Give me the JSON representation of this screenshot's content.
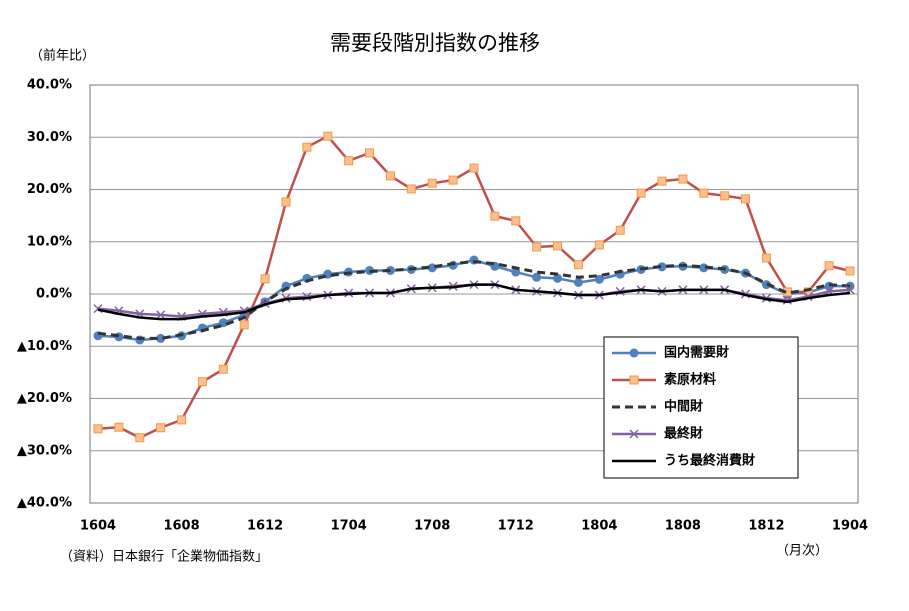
{
  "chart_data": {
    "type": "line",
    "title": "需要段階別指数の推移",
    "y_label": "（前年比）",
    "x_label": "（月次）",
    "source": "（資料）日本銀行「企業物価指数」",
    "categories": [
      "1604",
      null,
      null,
      null,
      "1608",
      null,
      null,
      null,
      "1612",
      null,
      null,
      null,
      "1704",
      null,
      null,
      null,
      "1708",
      null,
      null,
      null,
      "1712",
      null,
      null,
      null,
      "1804",
      null,
      null,
      null,
      "1808",
      null,
      null,
      null,
      "1812",
      null,
      null,
      null,
      "1904"
    ],
    "ylim": [
      -40,
      40
    ],
    "yticks": [
      {
        "value": -40,
        "label": "▲40.0%"
      },
      {
        "value": -30,
        "label": "▲30.0%"
      },
      {
        "value": -20,
        "label": "▲20.0%"
      },
      {
        "value": -10,
        "label": "▲10.0%"
      },
      {
        "value": 0,
        "label": "0.0%"
      },
      {
        "value": 10,
        "label": "10.0%"
      },
      {
        "value": 20,
        "label": "20.0%"
      },
      {
        "value": 30,
        "label": "30.0%"
      },
      {
        "value": 40,
        "label": "40.0%"
      }
    ],
    "negative_label_color": "#ff0000",
    "grid": true,
    "legend_position": "lower right",
    "series": [
      {
        "name": "国内需要財",
        "color": "#4f81bd",
        "marker": "circle",
        "values": [
          -8.0,
          -8.2,
          -8.8,
          -8.5,
          -8.0,
          -6.5,
          -5.5,
          -4.0,
          -1.5,
          1.5,
          3.0,
          3.8,
          4.2,
          4.5,
          4.5,
          4.7,
          5.0,
          5.5,
          6.5,
          5.3,
          4.2,
          3.2,
          3.0,
          2.2,
          2.8,
          3.8,
          4.7,
          5.2,
          5.3,
          5.0,
          4.7,
          4.0,
          1.8,
          0.0,
          0.3,
          1.5,
          1.5
        ]
      },
      {
        "name": "素原材料",
        "color": "#c0504d",
        "marker": "square",
        "marker_color": "#fac090",
        "values": [
          -25.8,
          -25.5,
          -27.5,
          -25.6,
          -24.1,
          -16.8,
          -14.4,
          -5.9,
          2.9,
          17.6,
          28.1,
          30.2,
          25.5,
          27.0,
          22.6,
          20.1,
          21.2,
          21.8,
          24.1,
          14.9,
          14.0,
          9.0,
          9.2,
          5.6,
          9.4,
          12.2,
          19.3,
          21.6,
          22.0,
          19.3,
          18.8,
          18.2,
          6.9,
          0.4,
          0.4,
          5.4,
          4.4
        ]
      },
      {
        "name": "中間財",
        "color": "#333333",
        "dashed": true,
        "values": [
          -7.5,
          -8.0,
          -8.5,
          -8.5,
          -7.8,
          -7.0,
          -6.0,
          -4.5,
          -1.5,
          1.0,
          2.5,
          3.5,
          4.0,
          4.3,
          4.5,
          4.8,
          5.2,
          5.8,
          6.2,
          5.8,
          5.0,
          4.2,
          3.8,
          3.2,
          3.5,
          4.3,
          4.8,
          5.3,
          5.5,
          5.2,
          4.8,
          4.0,
          2.0,
          0.2,
          0.8,
          1.8,
          1.5
        ]
      },
      {
        "name": "最終財",
        "color": "#8064a2",
        "marker": "x",
        "values": [
          -2.8,
          -3.2,
          -3.8,
          -4.0,
          -4.3,
          -3.8,
          -3.5,
          -3.2,
          -1.8,
          -0.8,
          -0.5,
          -0.2,
          0.2,
          0.2,
          0.2,
          1.0,
          1.2,
          1.5,
          1.8,
          1.8,
          0.8,
          0.5,
          0.2,
          -0.2,
          -0.2,
          0.5,
          0.8,
          0.5,
          0.8,
          0.8,
          0.8,
          0.0,
          -0.8,
          -1.2,
          -0.5,
          0.5,
          0.8
        ]
      },
      {
        "name": "うち最終消費財",
        "color": "#000000",
        "values": [
          -3.0,
          -3.8,
          -4.5,
          -4.8,
          -4.8,
          -4.3,
          -4.0,
          -3.5,
          -2.0,
          -1.0,
          -0.8,
          -0.2,
          0.0,
          0.2,
          0.2,
          1.0,
          1.2,
          1.3,
          1.8,
          1.8,
          0.8,
          0.5,
          0.2,
          -0.2,
          -0.2,
          0.3,
          0.8,
          0.5,
          0.8,
          0.8,
          0.8,
          -0.2,
          -1.0,
          -1.5,
          -0.8,
          -0.2,
          0.2
        ]
      }
    ]
  }
}
